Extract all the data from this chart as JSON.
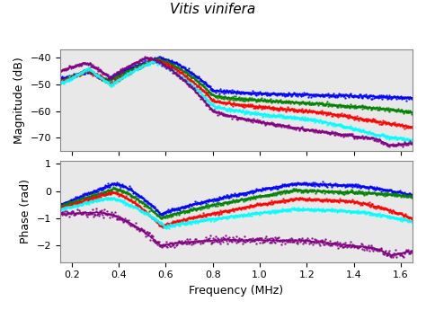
{
  "title": "Vitis vinifera",
  "xlabel": "Frequency (MHz)",
  "ylabel_top": "Magnitude (dB)",
  "ylabel_bottom": "Phase (rad)",
  "xlim": [
    0.15,
    1.65
  ],
  "ylim_mag": [
    -75,
    -37
  ],
  "ylim_phase": [
    -2.6,
    1.1
  ],
  "xticks": [
    0.2,
    0.4,
    0.6,
    0.8,
    1.0,
    1.2,
    1.4,
    1.6
  ],
  "yticks_mag": [
    -70,
    -60,
    -50,
    -40
  ],
  "yticks_phase": [
    -2,
    -1,
    0,
    1
  ],
  "colors": [
    "blue",
    "green",
    "red",
    "cyan",
    "purple"
  ],
  "noise_mag": 0.35,
  "noise_phase": 0.03,
  "noise_phase_purple": 0.06,
  "dot_size": 1.5,
  "line_width": 1.0,
  "title_fontsize": 11,
  "label_fontsize": 9,
  "tick_fontsize": 8,
  "bg_color": "#e8e8e8"
}
